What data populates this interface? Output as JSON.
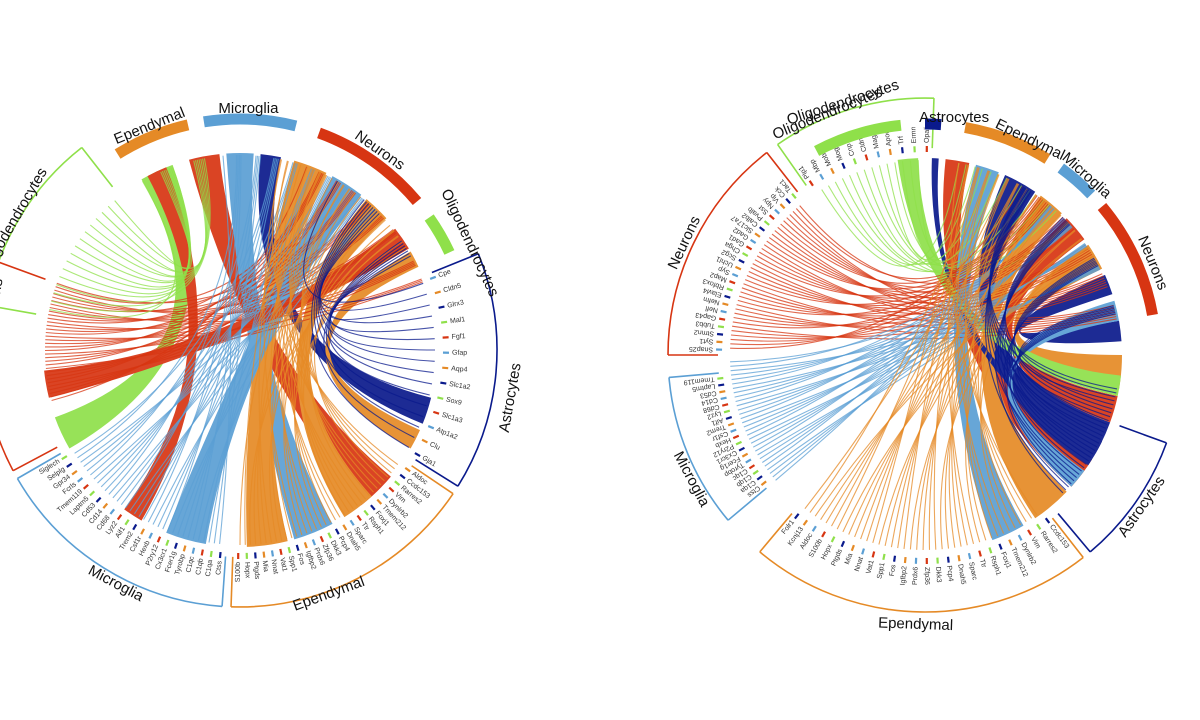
{
  "colors": {
    "Neurons": "#d73512",
    "Microglia": "#5b9fd4",
    "Ependymal": "#e58a26",
    "Astrocytes": "#0a1a8c",
    "Oligodendrocytes": "#8fe04a"
  },
  "diagrams": [
    {
      "id": "left",
      "outer_arcs": [
        {
          "group": "Ependymal",
          "label": "Ependymal"
        },
        {
          "group": "Microglia",
          "label": "Microglia"
        },
        {
          "group": "Neurons",
          "label": "Neurons"
        },
        {
          "group": "Oligodendrocytes",
          "label": "Oligodendrocytes"
        }
      ],
      "sectors": [
        {
          "group": "Oligodendrocytes",
          "label": "Oligodendrocytes"
        },
        {
          "group": "Astrocytes",
          "label": "Astrocytes",
          "genes": [
            "Cpe",
            "Cldn5",
            "Glrx3",
            "Mal1",
            "Fgf1",
            "Gfap",
            "Aqp4",
            "Slc1a2",
            "Sox9",
            "Slc1a3",
            "Atp1a2",
            "Clu",
            "Gja1"
          ]
        },
        {
          "group": "Ependymal",
          "label": "Ependymal",
          "genes": [
            "Aldoc",
            "Ccdc153",
            "Rarres2",
            "Vim",
            "Dynlrb2",
            "Tmem212",
            "Foxj1",
            "Rsph1",
            "Ttr",
            "Sparc",
            "Dnah5",
            "Pcp4",
            "Dkk3",
            "Zfp36",
            "Prdx6",
            "Igfbp2",
            "Fos",
            "Spp1",
            "Vat1",
            "Nnat",
            "Mia",
            "Ptgds",
            "Hopx",
            "S100b"
          ]
        },
        {
          "group": "Microglia",
          "label": "Microglia",
          "genes": [
            "Ctss",
            "C1qa",
            "C1qb",
            "C1qc",
            "Tyrobp",
            "Fcer1g",
            "Cx3cr1",
            "P2ry12",
            "Hexb",
            "Csf1r",
            "Trem2",
            "Aif1",
            "Lyz2",
            "Cd68",
            "Cd14",
            "Cd53",
            "Laptm5",
            "Tmem119",
            "Fcrls",
            "Gpr34",
            "Selplg",
            "Siglech"
          ]
        },
        {
          "group": "Neurons",
          "label": "Neurons"
        }
      ]
    },
    {
      "id": "right",
      "outer_arcs": [
        {
          "group": "Oligodendrocytes",
          "label": "Oligodendrocytes"
        },
        {
          "group": "Astrocytes",
          "label": "Astrocytes"
        },
        {
          "group": "Ependymal",
          "label": "Ependymal"
        },
        {
          "group": "Microglia",
          "label": "Microglia"
        },
        {
          "group": "Neurons",
          "label": "Neurons"
        }
      ],
      "sectors": [
        {
          "group": "Oligodendrocytes",
          "label": "Oligodendrocytes",
          "genes": [
            "Plp1",
            "Mbp",
            "Mobp",
            "Mog",
            "Cnp",
            "Cldn11",
            "Mag",
            "Apod",
            "Trf",
            "Ermn",
            "Opalin"
          ]
        },
        {
          "group": "Neurons",
          "label": "Neurons",
          "genes": [
            "Snap25",
            "Syt1",
            "Stmn2",
            "Tubb3",
            "Gap43",
            "Nefl",
            "Nefm",
            "Elavl4",
            "Rbfox3",
            "Map2",
            "Syp",
            "Uchl1",
            "Scg2",
            "Chga",
            "Gad1",
            "Gad2",
            "Slc17a7",
            "Calb2",
            "Pvalb",
            "Sst",
            "Npy",
            "Vip",
            "Cck",
            "Tac1"
          ]
        },
        {
          "group": "Microglia",
          "label": "Microglia",
          "genes": [
            "Ctss",
            "C1qa",
            "C1qb",
            "C1qc",
            "Tyrobp",
            "Fcer1g",
            "Cx3cr1",
            "P2ry12",
            "Hexb",
            "Csf1r",
            "Trem2",
            "Aif1",
            "Lyz2",
            "Cd68",
            "Cd14",
            "Cd53",
            "Laptm5",
            "Tmem119"
          ]
        },
        {
          "group": "Ependymal",
          "label": "Ependymal",
          "genes": [
            "Ccdc153",
            "Rarres2",
            "Vim",
            "Dynlrb2",
            "Tmem212",
            "Foxj1",
            "Rsph1",
            "Ttr",
            "Sparc",
            "Dnah5",
            "Pcp4",
            "Dkk3",
            "Zfp36",
            "Prdx6",
            "Igfbp2",
            "Fos",
            "Spp1",
            "Vat1",
            "Nnat",
            "Mia",
            "Ptgds",
            "Hopx",
            "S100b",
            "Aldoc",
            "Kcnj13",
            "Folr1"
          ]
        },
        {
          "group": "Astrocytes",
          "label": "Astrocytes"
        }
      ]
    }
  ]
}
